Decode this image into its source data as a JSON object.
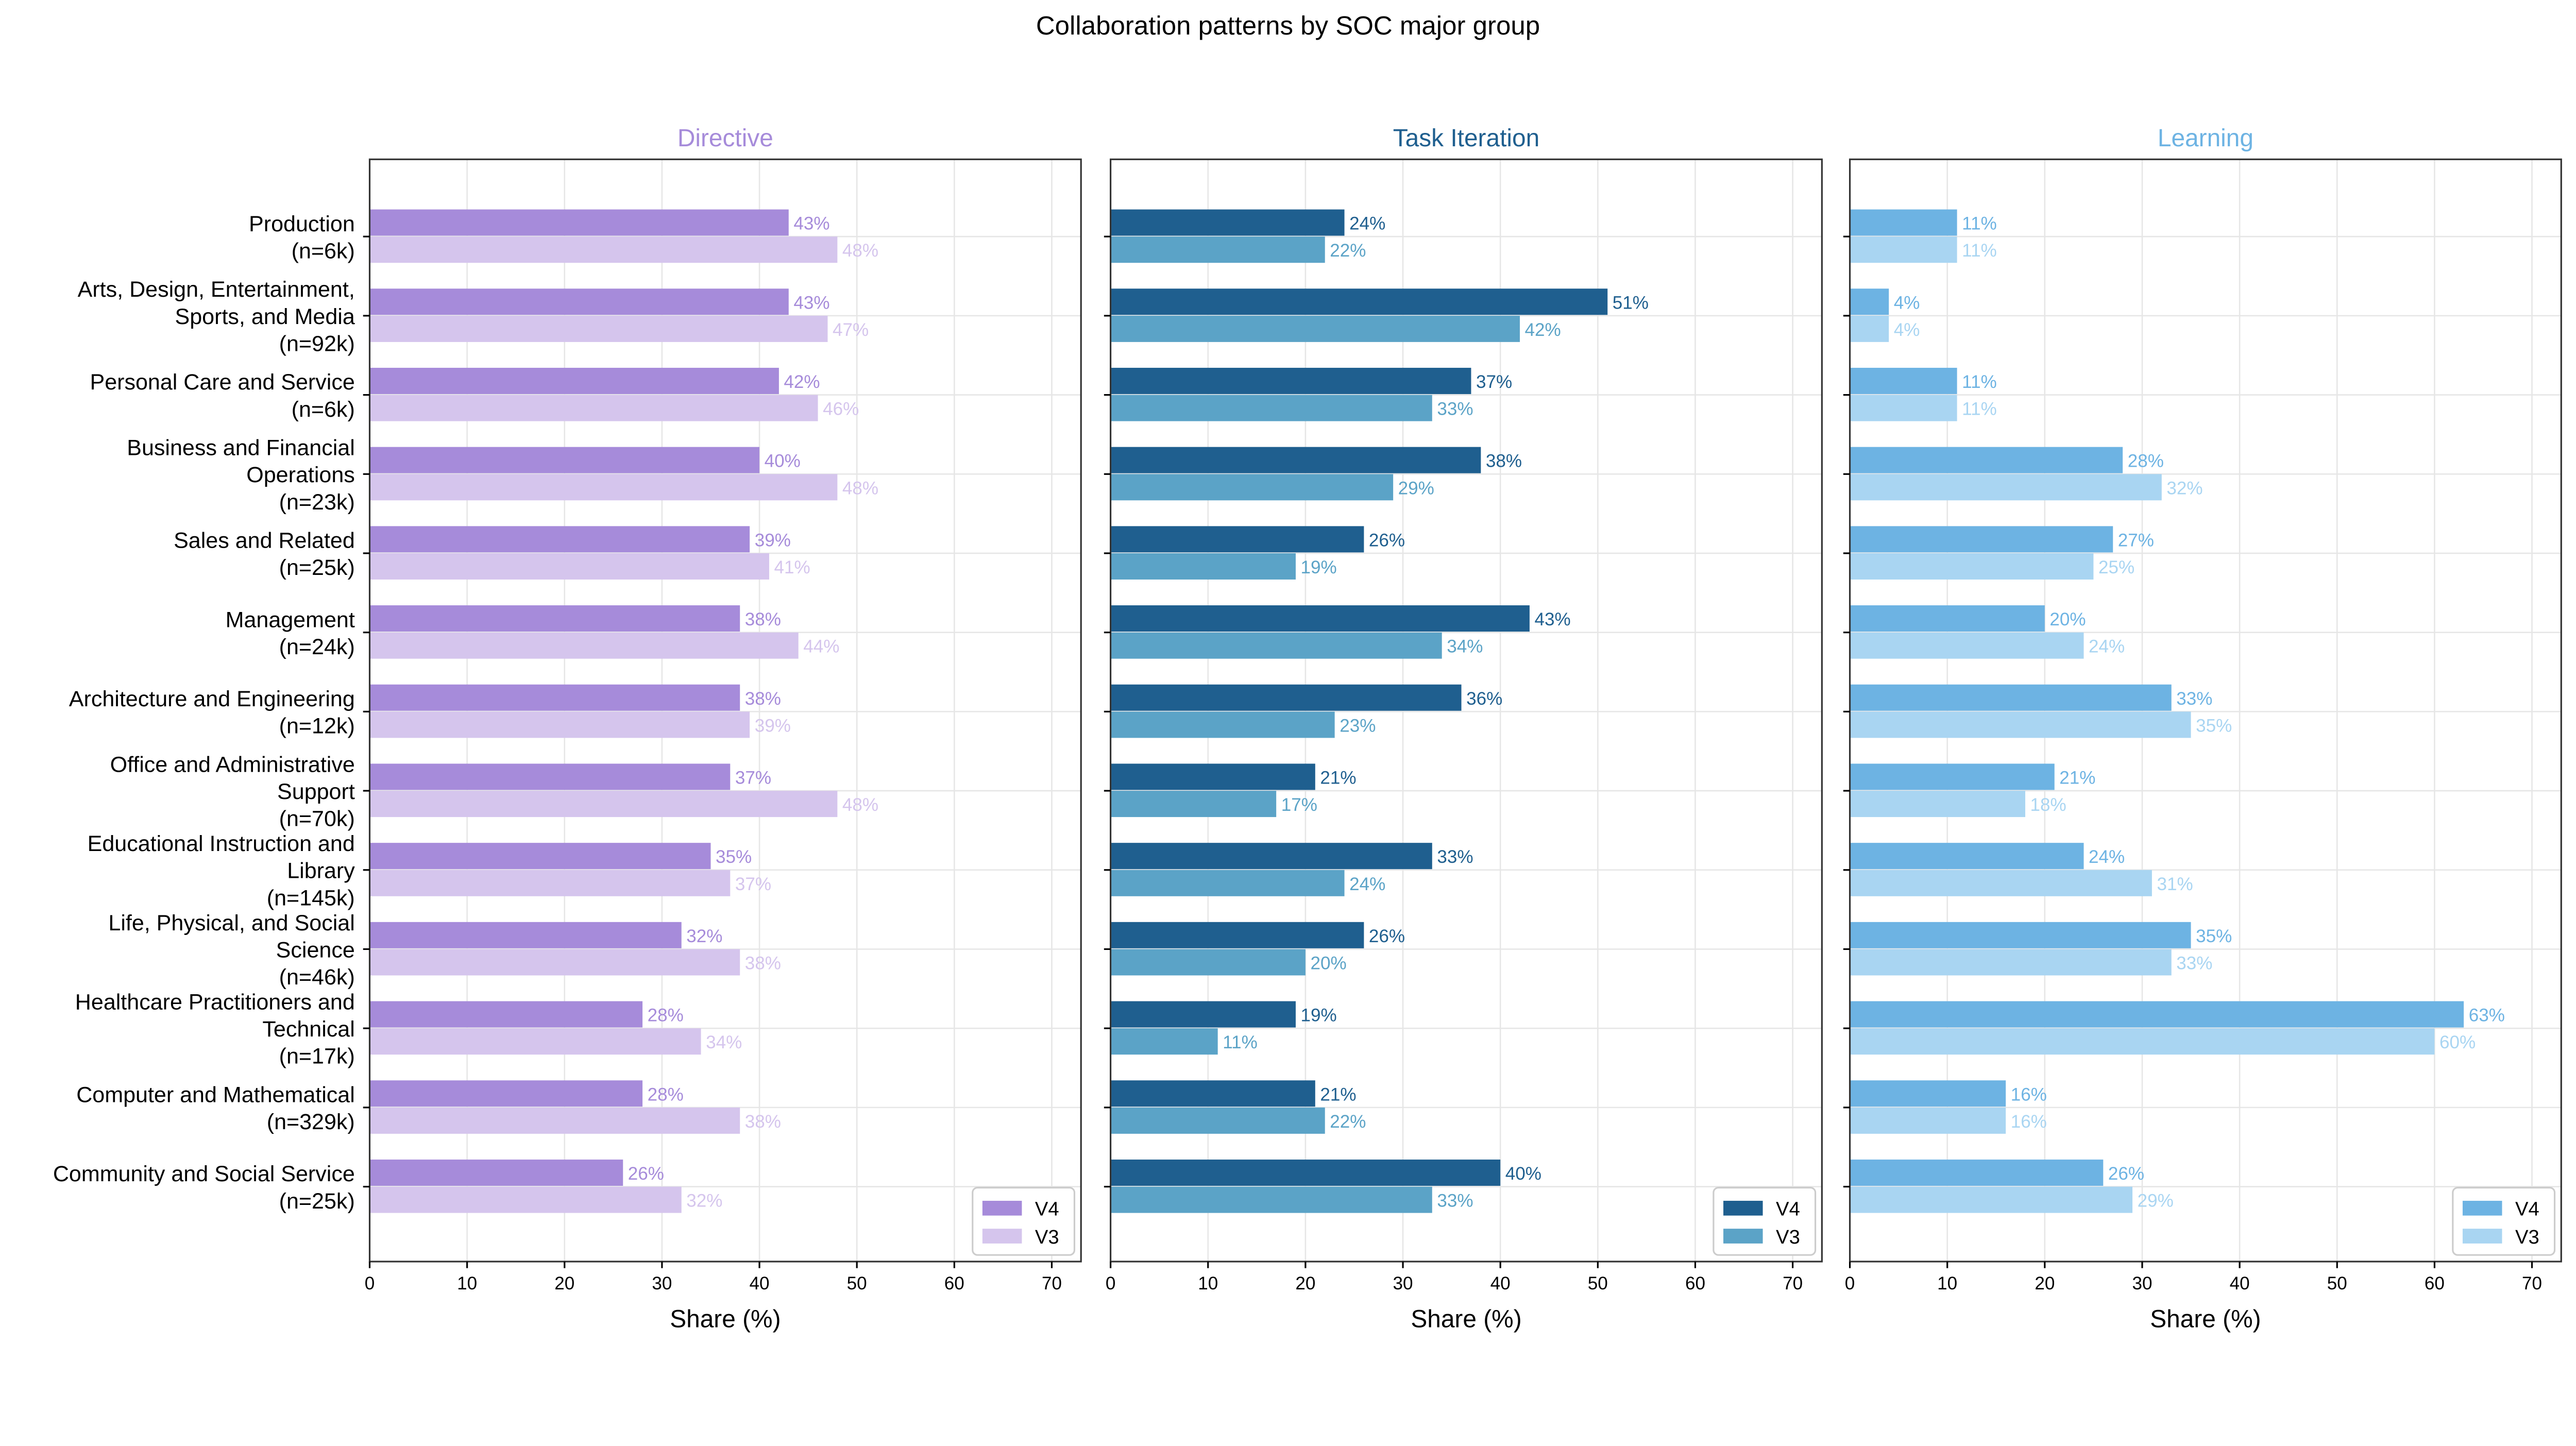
{
  "chart_data": {
    "title": "Collaboration patterns by SOC major group",
    "type": "bar",
    "orientation": "horizontal",
    "xlabel": "Share (%)",
    "xlim": [
      0,
      73
    ],
    "xticks": [
      0,
      10,
      20,
      30,
      40,
      50,
      60,
      70
    ],
    "grid": true,
    "legend_placement": "lower-right",
    "categories": [
      "Production\n(n=6k)",
      "Arts, Design, Entertainment,\nSports, and Media\n(n=92k)",
      "Personal Care and Service\n(n=6k)",
      "Business and Financial\nOperations\n(n=23k)",
      "Sales and Related\n(n=25k)",
      "Management\n(n=24k)",
      "Architecture and Engineering\n(n=12k)",
      "Office and Administrative\nSupport\n(n=70k)",
      "Educational Instruction and\nLibrary\n(n=145k)",
      "Life, Physical, and Social\nScience\n(n=46k)",
      "Healthcare Practitioners and\nTechnical\n(n=17k)",
      "Computer and Mathematical\n(n=329k)",
      "Community and Social Service\n(n=25k)"
    ],
    "panels": [
      {
        "title": "Directive",
        "title_color": "#a68bda",
        "series": [
          {
            "name": "V4",
            "color": "#a68bda",
            "label_color": "#a68bda",
            "values": [
              43,
              43,
              42,
              40,
              39,
              38,
              38,
              37,
              35,
              32,
              28,
              28,
              26
            ]
          },
          {
            "name": "V3",
            "color": "#d5c5ed",
            "label_color": "#d5c5ed",
            "values": [
              48,
              47,
              46,
              48,
              41,
              44,
              39,
              48,
              37,
              38,
              34,
              38,
              32
            ]
          }
        ]
      },
      {
        "title": "Task Iteration",
        "title_color": "#1f5f8f",
        "series": [
          {
            "name": "V4",
            "color": "#1f5f8f",
            "label_color": "#1f5f8f",
            "values": [
              24,
              51,
              37,
              38,
              26,
              43,
              36,
              21,
              33,
              26,
              19,
              21,
              40
            ]
          },
          {
            "name": "V3",
            "color": "#5ba3c7",
            "label_color": "#5ba3c7",
            "values": [
              22,
              42,
              33,
              29,
              19,
              34,
              23,
              17,
              24,
              20,
              11,
              22,
              33
            ]
          }
        ]
      },
      {
        "title": "Learning",
        "title_color": "#6db3e3",
        "series": [
          {
            "name": "V4",
            "color": "#6db3e3",
            "label_color": "#6db3e3",
            "values": [
              11,
              4,
              11,
              28,
              27,
              20,
              33,
              21,
              24,
              35,
              63,
              16,
              26
            ]
          },
          {
            "name": "V3",
            "color": "#a9d5f2",
            "label_color": "#a9d5f2",
            "values": [
              11,
              4,
              11,
              32,
              25,
              24,
              35,
              18,
              31,
              33,
              60,
              16,
              29
            ]
          }
        ]
      }
    ]
  }
}
